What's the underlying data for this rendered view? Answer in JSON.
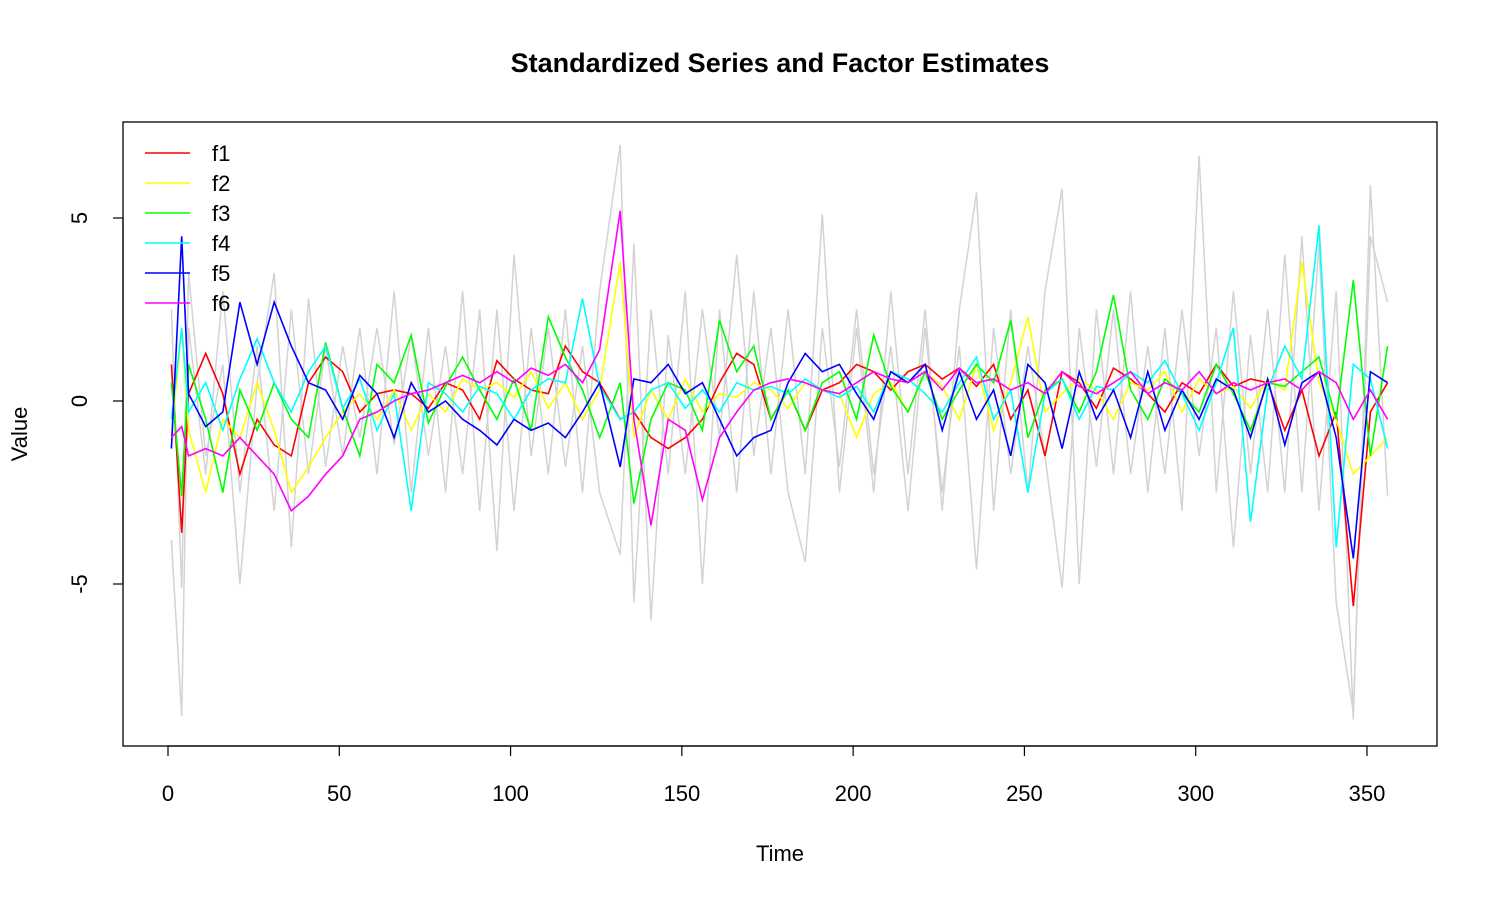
{
  "chart_data": {
    "type": "line",
    "title": "Standardized Series and Factor Estimates",
    "xlabel": "Time",
    "ylabel": "Value",
    "xlim": [
      -13,
      370
    ],
    "ylim": [
      -9.4,
      7.6
    ],
    "x_ticks": [
      "0",
      "50",
      "100",
      "150",
      "200",
      "250",
      "300",
      "350"
    ],
    "y_ticks": [
      "-5",
      "0",
      "5"
    ],
    "grid": false,
    "legend_position": "top-left",
    "x": [
      1,
      4,
      6,
      11,
      16,
      21,
      26,
      31,
      36,
      41,
      46,
      51,
      56,
      61,
      66,
      71,
      76,
      81,
      86,
      91,
      96,
      101,
      106,
      111,
      116,
      121,
      126,
      132,
      136,
      141,
      146,
      151,
      156,
      161,
      166,
      171,
      176,
      181,
      186,
      191,
      196,
      201,
      206,
      211,
      216,
      221,
      226,
      231,
      236,
      241,
      246,
      251,
      256,
      261,
      266,
      271,
      276,
      281,
      286,
      291,
      296,
      301,
      306,
      311,
      316,
      321,
      326,
      331,
      336,
      341,
      346,
      351,
      356
    ],
    "background_series": {
      "color": "#d3d3d3",
      "series": [
        {
          "values": [
            -3.8,
            -8.6,
            2.0,
            -2.0,
            3.0,
            -2.5,
            1.5,
            -3.0,
            2.5,
            -2.0,
            1.5,
            -1.5,
            2.0,
            -2.0,
            3.0,
            -2.5,
            2.0,
            -2.5,
            3.0,
            -3.0,
            2.5,
            -3.0,
            2.0,
            -2.0,
            2.5,
            -2.5,
            3.0,
            7.0,
            -5.5,
            2.5,
            -2.0,
            3.0,
            -5.0,
            2.5,
            -2.5,
            3.0,
            -2.0,
            2.5,
            -2.0,
            5.1,
            -2.5,
            2.0,
            -2.5,
            3.0,
            -2.0,
            2.5,
            -3.0,
            2.5,
            5.7,
            -3.0,
            2.5,
            -2.5,
            3.0,
            5.8,
            -5.0,
            2.5,
            -2.0,
            3.0,
            -2.5,
            2.0,
            -3.0,
            6.7,
            -2.5,
            3.0,
            -2.0,
            2.5,
            -2.5,
            4.5,
            -3.0,
            3.0,
            -8.7,
            5.9,
            -2.6
          ]
        },
        {
          "values": [
            2.5,
            -5.1,
            3.5,
            -1.5,
            1.0,
            -5.0,
            0.5,
            3.5,
            -4.0,
            2.8,
            -1.8,
            1.5,
            -1.0,
            2.0,
            -1.2,
            1.8,
            -1.5,
            1.5,
            -2.0,
            2.5,
            -4.1,
            4.0,
            -1.5,
            2.0,
            -1.8,
            1.5,
            -2.5,
            -4.2,
            4.3,
            -6.0,
            1.8,
            -2.0,
            2.5,
            -1.0,
            4.0,
            -1.5,
            2.0,
            -2.5,
            -4.4,
            2.0,
            -1.8,
            2.5,
            -2.0,
            1.5,
            -3.0,
            2.0,
            -2.5,
            1.5,
            -4.6,
            2.0,
            -2.0,
            1.5,
            -1.5,
            -5.1,
            2.0,
            -1.8,
            2.5,
            -2.0,
            1.5,
            -2.0,
            2.5,
            -1.5,
            2.0,
            -4.0,
            1.8,
            -2.5,
            4.0,
            -2.5,
            4.3,
            -5.5,
            -8.5,
            4.5,
            2.7
          ]
        }
      ]
    },
    "series": [
      {
        "name": "f1",
        "color": "#ff0000",
        "values": [
          1.0,
          -3.6,
          0.2,
          1.3,
          0.2,
          -2.0,
          -0.5,
          -1.2,
          -1.5,
          0.5,
          1.2,
          0.8,
          -0.3,
          0.2,
          0.3,
          0.2,
          -0.2,
          0.5,
          0.3,
          -0.5,
          1.1,
          0.6,
          0.3,
          0.2,
          1.5,
          0.8,
          0.5,
          -0.5,
          -0.3,
          -1.0,
          -1.3,
          -1.0,
          -0.5,
          0.5,
          1.3,
          1.0,
          -0.5,
          0.3,
          -0.8,
          0.3,
          0.5,
          1.0,
          0.8,
          0.3,
          0.8,
          1.0,
          0.6,
          0.9,
          0.4,
          1.0,
          -0.5,
          0.3,
          -1.5,
          0.8,
          0.5,
          -0.2,
          0.9,
          0.6,
          0.2,
          -0.3,
          0.5,
          0.2,
          1.0,
          0.4,
          0.6,
          0.5,
          -0.8,
          0.3,
          -1.5,
          -0.3,
          -5.6,
          -0.3,
          0.5
        ]
      },
      {
        "name": "f2",
        "color": "#ffff00",
        "values": [
          -1.0,
          2.0,
          -0.8,
          -2.5,
          -0.5,
          -1.0,
          0.5,
          -0.8,
          -2.5,
          -1.8,
          -1.0,
          -0.3,
          0.2,
          -0.5,
          0.3,
          -0.8,
          0.2,
          -0.3,
          0.6,
          0.3,
          0.5,
          0.1,
          0.8,
          -0.2,
          0.5,
          -0.5,
          0.3,
          3.8,
          -1.0,
          0.3,
          -0.5,
          0.6,
          -0.3,
          0.2,
          0.1,
          0.5,
          0.3,
          -0.2,
          0.5,
          0.3,
          0.2,
          -1.0,
          0.2,
          0.5,
          -0.3,
          0.8,
          0.4,
          -0.5,
          1.0,
          -0.8,
          0.5,
          2.3,
          -0.3,
          0.2,
          0.6,
          0.3,
          -0.5,
          0.5,
          0.3,
          0.8,
          -0.3,
          0.6,
          0.2,
          0.4,
          -0.2,
          0.6,
          0.3,
          3.8,
          0.5,
          -0.5,
          -2.0,
          -1.5,
          -1.0
        ]
      },
      {
        "name": "f3",
        "color": "#00ff00",
        "values": [
          0.5,
          -2.6,
          1.0,
          -0.5,
          -2.5,
          0.3,
          -0.8,
          0.5,
          -0.5,
          -1.0,
          1.6,
          -0.2,
          -1.5,
          1.0,
          0.5,
          1.8,
          -0.6,
          0.4,
          1.2,
          0.3,
          -0.5,
          0.6,
          -0.8,
          2.3,
          1.2,
          0.3,
          -1.0,
          0.5,
          -2.8,
          -0.5,
          0.5,
          0.3,
          -0.8,
          2.2,
          0.8,
          1.5,
          -0.5,
          0.3,
          -0.8,
          0.5,
          0.8,
          -0.5,
          1.8,
          0.4,
          -0.3,
          0.8,
          -0.5,
          0.3,
          1.0,
          0.5,
          2.2,
          -1.0,
          0.3,
          0.6,
          -0.3,
          0.8,
          2.9,
          0.3,
          -0.5,
          0.6,
          0.2,
          -0.3,
          1.0,
          0.2,
          -0.8,
          0.5,
          0.4,
          0.8,
          1.2,
          -0.5,
          3.3,
          -1.5,
          1.5
        ]
      },
      {
        "name": "f4",
        "color": "#00ffff",
        "values": [
          -0.5,
          2.0,
          -0.3,
          0.5,
          -0.8,
          0.6,
          1.7,
          0.5,
          -0.3,
          0.8,
          1.5,
          -0.2,
          0.6,
          -0.8,
          0.2,
          -3.0,
          0.5,
          0.2,
          -0.3,
          0.4,
          0.2,
          -0.5,
          0.3,
          0.6,
          0.5,
          2.8,
          0.4,
          -0.5,
          -0.3,
          0.3,
          0.5,
          -0.2,
          0.3,
          -0.3,
          0.5,
          0.3,
          0.4,
          0.2,
          0.6,
          0.3,
          0.1,
          0.4,
          -0.3,
          0.8,
          0.6,
          0.2,
          -0.3,
          0.5,
          1.2,
          -0.5,
          0.3,
          -2.5,
          0.2,
          0.6,
          -0.5,
          0.4,
          0.3,
          0.8,
          0.5,
          1.1,
          0.2,
          -0.8,
          0.5,
          2.0,
          -3.3,
          0.3,
          1.5,
          0.6,
          4.8,
          -4.0,
          1.0,
          0.6,
          -1.3
        ]
      },
      {
        "name": "f5",
        "color": "#0000ff",
        "values": [
          -1.3,
          4.5,
          0.2,
          -0.7,
          -0.3,
          2.7,
          1.0,
          2.7,
          1.5,
          0.5,
          0.3,
          -0.5,
          0.7,
          0.2,
          -1.0,
          0.5,
          -0.3,
          0.0,
          -0.5,
          -0.8,
          -1.2,
          -0.5,
          -0.8,
          -0.6,
          -1.0,
          -0.3,
          0.5,
          -1.8,
          0.6,
          0.5,
          1.0,
          0.2,
          0.5,
          -0.5,
          -1.5,
          -1.0,
          -0.8,
          0.5,
          1.3,
          0.8,
          1.0,
          0.2,
          -0.5,
          0.8,
          0.5,
          1.0,
          -0.8,
          0.8,
          -0.5,
          0.3,
          -1.5,
          1.0,
          0.5,
          -1.3,
          0.8,
          -0.5,
          0.3,
          -1.0,
          0.8,
          -0.8,
          0.3,
          -0.5,
          0.6,
          0.3,
          -1.0,
          0.6,
          -1.2,
          0.5,
          0.8,
          -1.0,
          -4.3,
          0.8,
          0.5
        ]
      },
      {
        "name": "f6",
        "color": "#ff00ff",
        "values": [
          -1.0,
          -0.7,
          -1.5,
          -1.3,
          -1.5,
          -1.0,
          -1.5,
          -2.0,
          -3.0,
          -2.6,
          -2.0,
          -1.5,
          -0.5,
          -0.3,
          0.0,
          0.2,
          0.3,
          0.5,
          0.7,
          0.5,
          0.8,
          0.5,
          0.9,
          0.7,
          1.0,
          0.5,
          1.4,
          5.2,
          -0.5,
          -3.4,
          -0.5,
          -0.8,
          -2.7,
          -1.0,
          -0.3,
          0.3,
          0.5,
          0.6,
          0.5,
          0.3,
          0.2,
          0.5,
          0.8,
          0.6,
          0.5,
          0.8,
          0.3,
          0.9,
          0.5,
          0.6,
          0.3,
          0.5,
          0.2,
          0.8,
          0.4,
          0.2,
          0.5,
          0.8,
          0.2,
          0.5,
          0.3,
          0.8,
          0.2,
          0.5,
          0.3,
          0.5,
          0.6,
          0.3,
          0.8,
          0.5,
          -0.5,
          0.3,
          -0.5
        ]
      }
    ]
  }
}
